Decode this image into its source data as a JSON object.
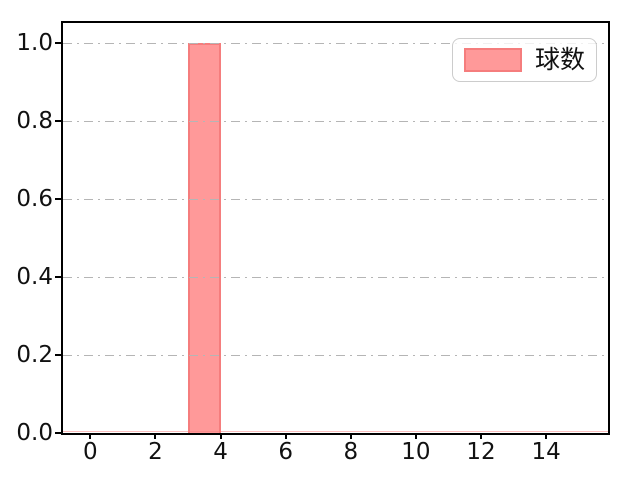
{
  "chart_data": {
    "type": "bar",
    "title": "",
    "xlabel": "",
    "ylabel": "",
    "xlim": [
      -0.84,
      15.9
    ],
    "ylim": [
      0,
      1.0513
    ],
    "x_tick_values": [
      0,
      2,
      4,
      6,
      8,
      10,
      12,
      14
    ],
    "x_tick_labels": [
      "0",
      "2",
      "4",
      "6",
      "8",
      "10",
      "12",
      "14"
    ],
    "y_tick_values": [
      0.0,
      0.2,
      0.4,
      0.6,
      0.8,
      1.0
    ],
    "y_tick_labels": [
      "0.0",
      "0.2",
      "0.4",
      "0.6",
      "0.8",
      "1.0"
    ],
    "grid": {
      "axis": "y",
      "line_style": "dash-dot",
      "color": "#b5b5b5"
    },
    "series": [
      {
        "name": "球数",
        "type": "bar",
        "fill": "#ff9999",
        "edge": "#f57d7d",
        "bars": [
          {
            "x0": 3,
            "x1": 4,
            "height": 1.0
          }
        ]
      }
    ],
    "baseline": {
      "y": 0,
      "color": "rgba(245,125,125,0.5)"
    },
    "legend": {
      "position": "upper-right",
      "entries": [
        {
          "label": "球数",
          "fill": "#ff9999",
          "edge": "#f57d7d"
        }
      ]
    }
  }
}
